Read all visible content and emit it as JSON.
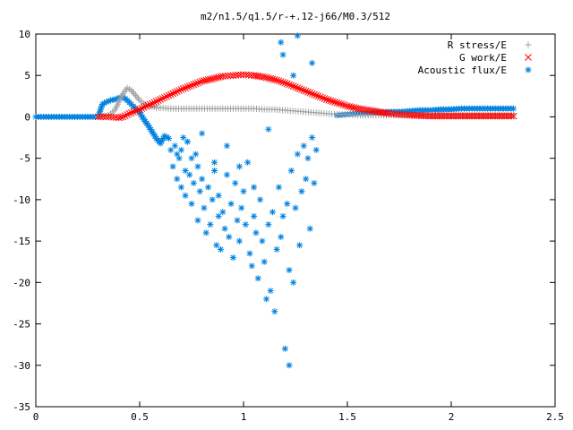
{
  "chart_data": {
    "type": "scatter",
    "title": "m2/n1.5/q1.5/r-+.12-j66/M0.3/512",
    "xlabel": "",
    "ylabel": "",
    "xlim": [
      0,
      2.5
    ],
    "ylim": [
      -35,
      10
    ],
    "x_ticks": [
      "0",
      "0.5",
      "1",
      "1.5",
      "2",
      "2.5"
    ],
    "y_ticks": [
      "10",
      "5",
      "0",
      "-5",
      "-10",
      "-15",
      "-20",
      "-25",
      "-30",
      "-35"
    ],
    "grid": false,
    "legend_position": "top-right",
    "series": [
      {
        "name": "R stress/E",
        "marker": "plus",
        "color": "#a0a0a0",
        "x": [
          0.3,
          0.35,
          0.38,
          0.4,
          0.42,
          0.44,
          0.46,
          0.48,
          0.5,
          0.52,
          0.55,
          0.58,
          0.6,
          0.65,
          0.7,
          0.75,
          0.8,
          0.85,
          0.9,
          0.95,
          1.0,
          1.05,
          1.1,
          1.15,
          1.2,
          1.25,
          1.3,
          1.35,
          1.4,
          1.45,
          1.5,
          1.55,
          1.6,
          1.65,
          1.7,
          1.8,
          1.9,
          2.0,
          2.1,
          2.2,
          2.3
        ],
        "y": [
          0.0,
          0.2,
          0.8,
          1.8,
          2.8,
          3.5,
          3.2,
          2.6,
          2.0,
          1.6,
          1.3,
          1.1,
          1.1,
          1.0,
          1.0,
          1.0,
          1.0,
          1.0,
          1.0,
          1.0,
          1.0,
          1.0,
          0.9,
          0.9,
          0.8,
          0.7,
          0.6,
          0.5,
          0.4,
          0.3,
          0.3,
          0.2,
          0.2,
          0.2,
          0.2,
          0.2,
          0.2,
          0.2,
          0.2,
          0.2,
          0.2
        ]
      },
      {
        "name": "G work/E",
        "marker": "cross",
        "color": "#ff0000",
        "x": [
          0.3,
          0.35,
          0.4,
          0.42,
          0.45,
          0.5,
          0.55,
          0.6,
          0.65,
          0.7,
          0.75,
          0.8,
          0.85,
          0.9,
          0.95,
          1.0,
          1.05,
          1.1,
          1.15,
          1.2,
          1.25,
          1.3,
          1.35,
          1.4,
          1.45,
          1.5,
          1.55,
          1.6,
          1.65,
          1.7,
          1.75,
          1.8,
          1.9,
          2.0,
          2.1,
          2.2,
          2.3
        ],
        "y": [
          0.0,
          0.0,
          -0.1,
          0.0,
          0.4,
          0.9,
          1.5,
          2.1,
          2.7,
          3.3,
          3.8,
          4.3,
          4.6,
          4.9,
          5.0,
          5.1,
          5.0,
          4.8,
          4.5,
          4.1,
          3.6,
          3.1,
          2.6,
          2.1,
          1.7,
          1.3,
          1.0,
          0.8,
          0.6,
          0.4,
          0.3,
          0.2,
          0.1,
          0.1,
          0.1,
          0.1,
          0.1
        ]
      },
      {
        "name": "Acoustic flux/E",
        "marker": "star",
        "color": "#0080e0",
        "line_x": [
          0.0,
          0.05,
          0.1,
          0.15,
          0.2,
          0.25,
          0.3,
          0.32,
          0.34,
          0.36,
          0.38,
          0.4,
          0.42,
          0.44,
          0.46,
          0.48,
          0.5,
          0.52,
          0.54,
          0.56,
          0.58,
          0.6,
          0.62,
          0.64,
          1.45,
          1.5,
          1.55,
          1.6,
          1.65,
          1.7,
          1.75,
          1.8,
          1.85,
          1.9,
          1.95,
          2.0,
          2.05,
          2.1,
          2.15,
          2.2,
          2.25,
          2.3
        ],
        "line_y": [
          0.0,
          0.0,
          0.0,
          0.0,
          0.0,
          0.0,
          0.0,
          1.5,
          1.8,
          2.0,
          2.1,
          2.3,
          2.4,
          2.0,
          1.5,
          1.0,
          0.5,
          -0.3,
          -1.0,
          -1.8,
          -2.6,
          -3.2,
          -2.3,
          -2.6,
          0.2,
          0.3,
          0.4,
          0.4,
          0.5,
          0.6,
          0.6,
          0.7,
          0.8,
          0.8,
          0.9,
          0.9,
          1.0,
          1.0,
          1.0,
          1.0,
          1.0,
          1.0
        ],
        "scatter_x": [
          0.65,
          0.66,
          0.67,
          0.68,
          0.69,
          0.7,
          0.7,
          0.71,
          0.72,
          0.72,
          0.73,
          0.74,
          0.75,
          0.75,
          0.76,
          0.77,
          0.78,
          0.78,
          0.79,
          0.8,
          0.81,
          0.82,
          0.83,
          0.84,
          0.85,
          0.86,
          0.87,
          0.88,
          0.88,
          0.89,
          0.9,
          0.91,
          0.92,
          0.93,
          0.94,
          0.95,
          0.96,
          0.97,
          0.98,
          0.99,
          1.0,
          1.01,
          1.02,
          1.03,
          1.04,
          1.05,
          1.06,
          1.07,
          1.08,
          1.09,
          1.1,
          1.11,
          1.12,
          1.13,
          1.14,
          1.15,
          1.16,
          1.17,
          1.18,
          1.19,
          1.2,
          1.21,
          1.22,
          1.23,
          1.24,
          1.25,
          1.26,
          1.27,
          1.28,
          1.29,
          1.3,
          1.31,
          1.32,
          1.33,
          1.34,
          1.35,
          0.68,
          0.73,
          0.8,
          0.86,
          0.92,
          0.98,
          1.05,
          1.12,
          1.18,
          1.26,
          1.33,
          1.22,
          1.19,
          1.24
        ],
        "scatter_y": [
          -4.0,
          -6.0,
          -3.5,
          -7.5,
          -5.0,
          -4.0,
          -8.5,
          -2.5,
          -6.5,
          -9.5,
          -3.0,
          -7.0,
          -5.0,
          -10.5,
          -8.0,
          -4.5,
          -6.0,
          -12.5,
          -9.0,
          -7.5,
          -11.0,
          -14.0,
          -8.5,
          -13.0,
          -10.0,
          -6.5,
          -15.5,
          -12.0,
          -9.5,
          -16.0,
          -11.5,
          -13.5,
          -7.0,
          -14.5,
          -10.5,
          -17.0,
          -8.0,
          -12.5,
          -15.0,
          -11.0,
          -9.0,
          -13.0,
          -5.5,
          -16.5,
          -18.0,
          -12.0,
          -14.0,
          -19.5,
          -10.0,
          -15.0,
          -17.5,
          -22.0,
          -13.0,
          -21.0,
          -11.5,
          -23.5,
          -16.0,
          -8.5,
          -14.5,
          -12.0,
          -28.0,
          -10.5,
          -18.5,
          -6.5,
          -20.0,
          -11.0,
          -4.5,
          -15.5,
          -9.0,
          -3.5,
          -7.5,
          -5.0,
          -13.5,
          -2.5,
          -8.0,
          -4.0,
          -4.5,
          -3.0,
          -2.0,
          -5.5,
          -3.5,
          -6.0,
          -8.5,
          -1.5,
          9.0,
          9.8,
          6.5,
          -30.0,
          7.5,
          5.0
        ]
      }
    ]
  }
}
